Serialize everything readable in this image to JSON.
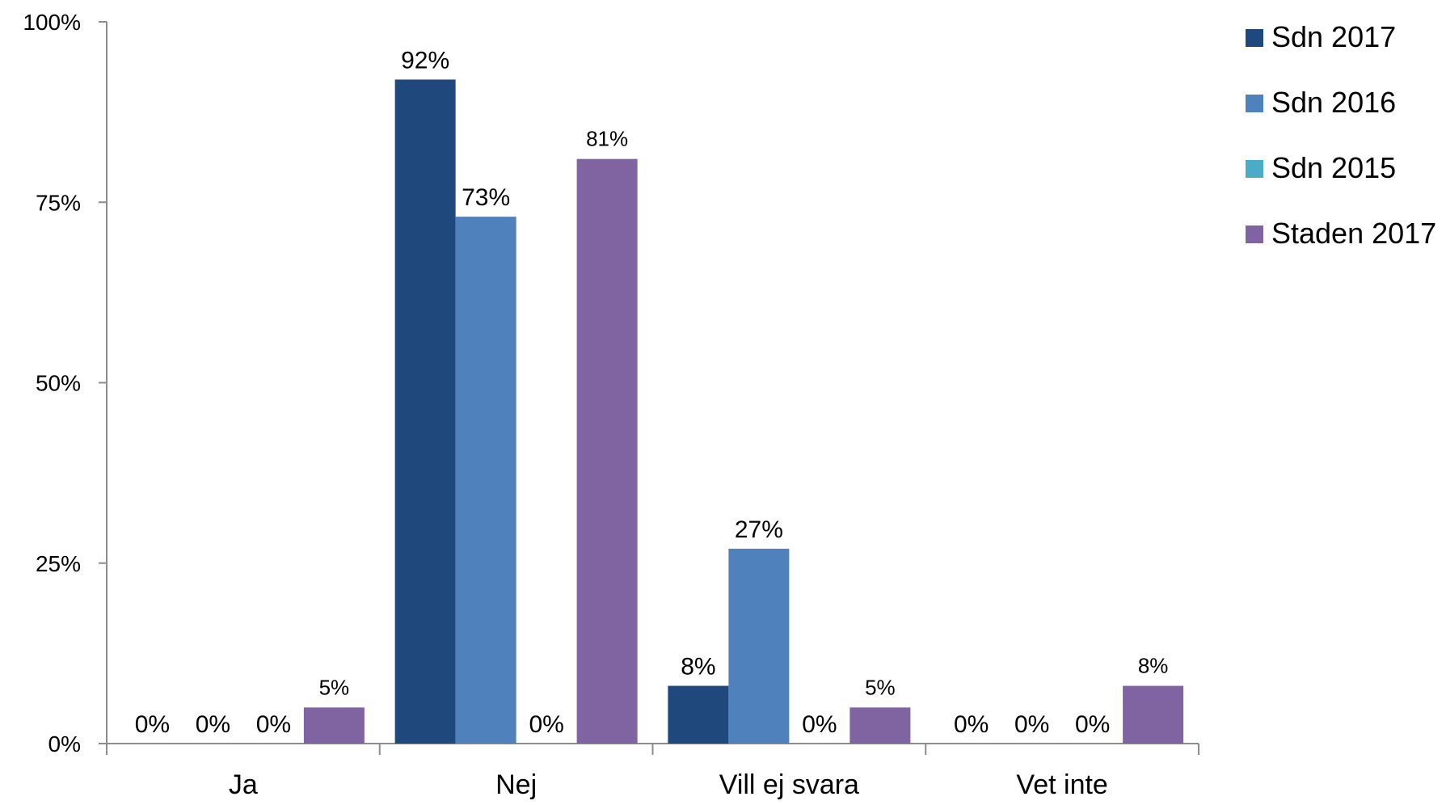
{
  "chart_data": {
    "type": "bar",
    "title": "",
    "xlabel": "",
    "ylabel": "",
    "categories": [
      "Ja",
      "Nej",
      "Vill ej svara",
      "Vet inte"
    ],
    "series": [
      {
        "name": "Sdn 2017",
        "color": "#1F497D",
        "values": [
          0,
          92,
          8,
          0
        ],
        "labels": [
          "0%",
          "92%",
          "8%",
          "0%"
        ]
      },
      {
        "name": "Sdn 2016",
        "color": "#4F81BD",
        "values": [
          0,
          73,
          27,
          0
        ],
        "labels": [
          "0%",
          "73%",
          "27%",
          "0%"
        ]
      },
      {
        "name": "Sdn 2015",
        "color": "#4BACC6",
        "values": [
          0,
          0,
          0,
          0
        ],
        "labels": [
          "0%",
          "0%",
          "0%",
          "0%"
        ]
      },
      {
        "name": "Staden 2017",
        "color": "#8064A2",
        "values": [
          5,
          81,
          5,
          8
        ],
        "labels": [
          "5%",
          "81%",
          "5%",
          "8%"
        ]
      }
    ],
    "ylim": [
      0,
      100
    ],
    "yticks": [
      {
        "value": 0,
        "label": "0%"
      },
      {
        "value": 25,
        "label": "25%"
      },
      {
        "value": 50,
        "label": "50%"
      },
      {
        "value": 75,
        "label": "75%"
      },
      {
        "value": 100,
        "label": "100%"
      }
    ],
    "grid": false,
    "legend_position": "top-right"
  }
}
